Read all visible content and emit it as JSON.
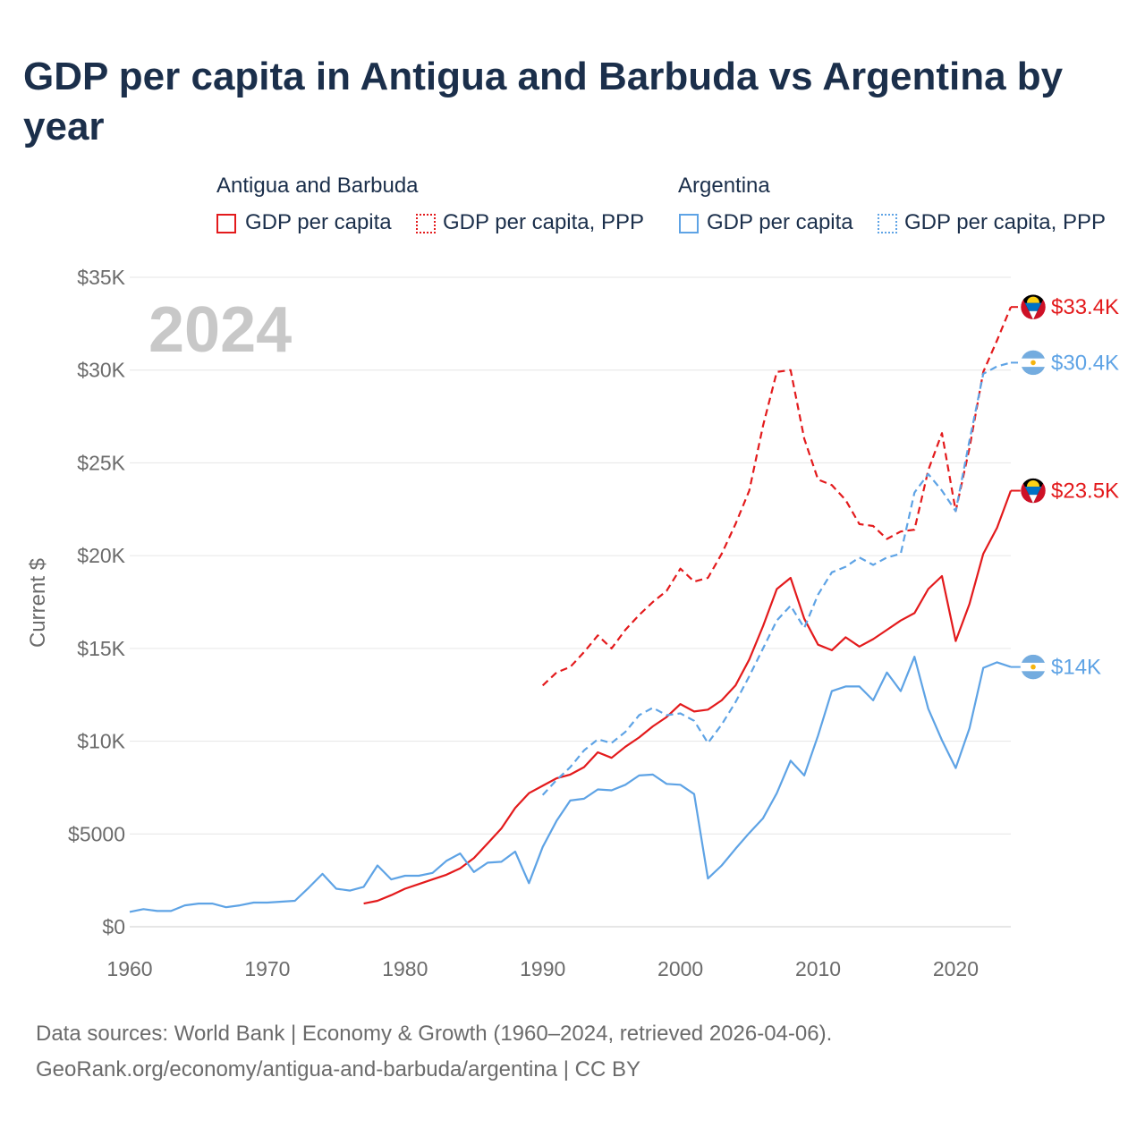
{
  "title": "GDP per capita in Antigua and Barbuda vs Argentina by year",
  "legend": {
    "groups": [
      {
        "name": "Antigua and Barbuda",
        "items": [
          "GDP per capita",
          "GDP per capita, PPP"
        ]
      },
      {
        "name": "Argentina",
        "items": [
          "GDP per capita",
          "GDP per capita, PPP"
        ]
      }
    ]
  },
  "colors": {
    "antigua": "#e31a1c",
    "argentina": "#5ea3e5",
    "year_label": "#c8c8c8",
    "grid": "#e6e6e6"
  },
  "footer": {
    "line1": "Data sources: World Bank | Economy & Growth (1960–2024, retrieved 2026-04-06).",
    "line2": "GeoRank.org/economy/antigua-and-barbuda/argentina | CC BY"
  },
  "chart_data": {
    "type": "line",
    "title": "GDP per capita in Antigua and Barbuda vs Argentina by year",
    "xlabel": "",
    "ylabel": "Current $",
    "xlim": [
      1960,
      2024
    ],
    "ylim": [
      0,
      35000
    ],
    "x_ticks": [
      1960,
      1970,
      1980,
      1990,
      2000,
      2010,
      2020
    ],
    "y_ticks": [
      0,
      5000,
      10000,
      15000,
      20000,
      25000,
      30000,
      35000
    ],
    "y_tick_labels": [
      "$0",
      "$5000",
      "$10K",
      "$15K",
      "$20K",
      "$25K",
      "$30K",
      "$35K"
    ],
    "year_label": "2024",
    "series": [
      {
        "name": "Antigua and Barbuda GDP per capita",
        "country": "Antigua and Barbuda",
        "color": "#e31a1c",
        "style": "solid",
        "end_label": "$23.5K",
        "x": [
          1977,
          1978,
          1979,
          1980,
          1981,
          1982,
          1983,
          1984,
          1985,
          1986,
          1987,
          1988,
          1989,
          1990,
          1991,
          1992,
          1993,
          1994,
          1995,
          1996,
          1997,
          1998,
          1999,
          2000,
          2001,
          2002,
          2003,
          2004,
          2005,
          2006,
          2007,
          2008,
          2009,
          2010,
          2011,
          2012,
          2013,
          2014,
          2015,
          2016,
          2017,
          2018,
          2019,
          2020,
          2021,
          2022,
          2023,
          2024
        ],
        "values": [
          1250,
          1400,
          1700,
          2050,
          2300,
          2550,
          2800,
          3150,
          3700,
          4500,
          5300,
          6400,
          7200,
          7600,
          8000,
          8200,
          8600,
          9400,
          9100,
          9700,
          10200,
          10800,
          11300,
          12000,
          11600,
          11700,
          12200,
          13000,
          14400,
          16200,
          18200,
          18800,
          16600,
          15200,
          14900,
          15600,
          15100,
          15500,
          16000,
          16500,
          16900,
          18200,
          18900,
          15400,
          17400,
          20100,
          21500,
          23500
        ]
      },
      {
        "name": "Antigua and Barbuda GDP per capita, PPP",
        "country": "Antigua and Barbuda",
        "color": "#e31a1c",
        "style": "dashed",
        "end_label": "$33.4K",
        "x": [
          1990,
          1991,
          1992,
          1993,
          1994,
          1995,
          1996,
          1997,
          1998,
          1999,
          2000,
          2001,
          2002,
          2003,
          2004,
          2005,
          2006,
          2007,
          2008,
          2009,
          2010,
          2011,
          2012,
          2013,
          2014,
          2015,
          2016,
          2017,
          2018,
          2019,
          2020,
          2021,
          2022,
          2023,
          2024
        ],
        "values": [
          13000,
          13700,
          14000,
          14800,
          15700,
          15000,
          16000,
          16800,
          17500,
          18100,
          19300,
          18600,
          18800,
          20100,
          21700,
          23500,
          27000,
          29900,
          30000,
          26300,
          24100,
          23800,
          23000,
          21700,
          21600,
          20900,
          21300,
          21400,
          24600,
          26600,
          22400,
          25800,
          29900,
          31600,
          33400
        ]
      },
      {
        "name": "Argentina GDP per capita",
        "country": "Argentina",
        "color": "#5ea3e5",
        "style": "solid",
        "end_label": "$14K",
        "x": [
          1960,
          1961,
          1962,
          1963,
          1964,
          1965,
          1966,
          1967,
          1968,
          1969,
          1970,
          1971,
          1972,
          1973,
          1974,
          1975,
          1976,
          1977,
          1978,
          1979,
          1980,
          1981,
          1982,
          1983,
          1984,
          1985,
          1986,
          1987,
          1988,
          1989,
          1990,
          1991,
          1992,
          1993,
          1994,
          1995,
          1996,
          1997,
          1998,
          1999,
          2000,
          2001,
          2002,
          2003,
          2004,
          2005,
          2006,
          2007,
          2008,
          2009,
          2010,
          2011,
          2012,
          2013,
          2014,
          2015,
          2016,
          2017,
          2018,
          2019,
          2020,
          2021,
          2022,
          2023,
          2024
        ],
        "values": [
          800,
          950,
          850,
          850,
          1150,
          1250,
          1250,
          1050,
          1150,
          1300,
          1300,
          1350,
          1400,
          2100,
          2850,
          2050,
          1950,
          2150,
          3300,
          2550,
          2750,
          2750,
          2900,
          3550,
          3950,
          2950,
          3450,
          3500,
          4050,
          2350,
          4300,
          5700,
          6800,
          6900,
          7400,
          7350,
          7650,
          8150,
          8200,
          7700,
          7650,
          7150,
          2600,
          3300,
          4200,
          5050,
          5850,
          7200,
          8950,
          8150,
          10300,
          12700,
          12950,
          12950,
          12200,
          13700,
          12700,
          14550,
          11750,
          10050,
          8550,
          10700,
          13950,
          14250,
          14000
        ]
      },
      {
        "name": "Argentina GDP per capita, PPP",
        "country": "Argentina",
        "color": "#5ea3e5",
        "style": "dashed",
        "end_label": "$30.4K",
        "x": [
          1990,
          1991,
          1992,
          1993,
          1994,
          1995,
          1996,
          1997,
          1998,
          1999,
          2000,
          2001,
          2002,
          2003,
          2004,
          2005,
          2006,
          2007,
          2008,
          2009,
          2010,
          2011,
          2012,
          2013,
          2014,
          2015,
          2016,
          2017,
          2018,
          2019,
          2020,
          2021,
          2022,
          2023,
          2024
        ],
        "values": [
          7100,
          7900,
          8600,
          9500,
          10100,
          9900,
          10500,
          11400,
          11800,
          11400,
          11500,
          11100,
          9900,
          10900,
          12100,
          13500,
          15000,
          16500,
          17300,
          16100,
          17900,
          19100,
          19400,
          19900,
          19500,
          19900,
          20100,
          23400,
          24400,
          23500,
          22400,
          26200,
          29800,
          30200,
          30400
        ]
      }
    ]
  }
}
